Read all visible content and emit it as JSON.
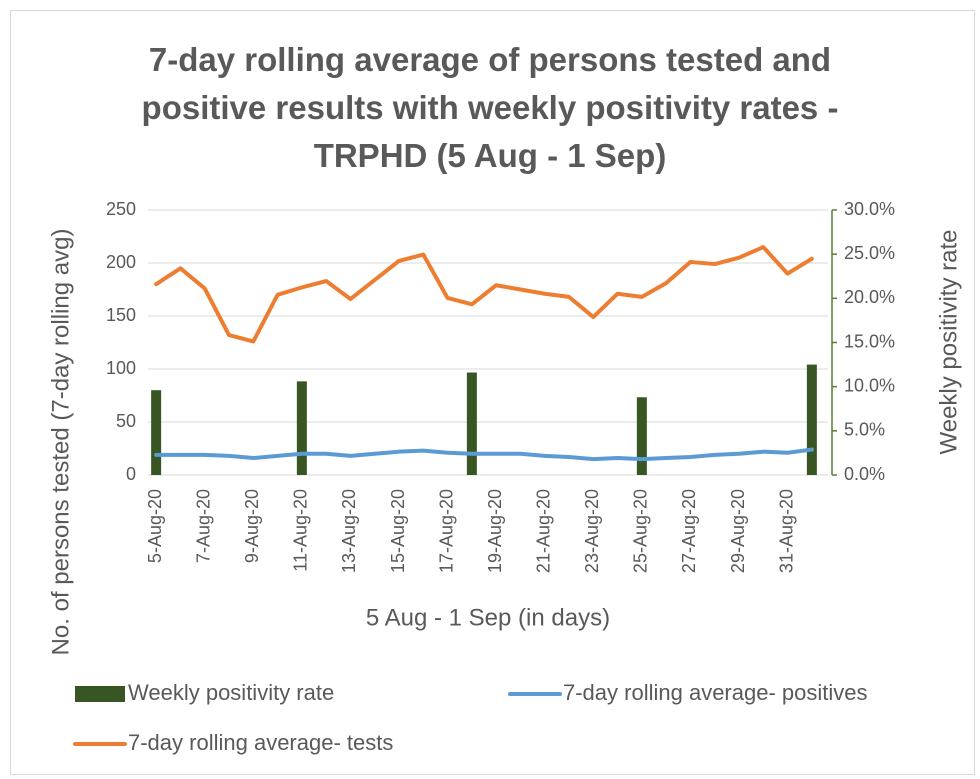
{
  "chart_data": {
    "type": "line",
    "title": "7-day rolling average of persons tested and positive results with weekly positivity rates - TRPHD (5 Aug - 1 Sep)",
    "x_label": "5 Aug -  1 Sep (in days)",
    "y_label": "No. of persons tested (7-day rolling avg)",
    "y2_label": "Weekly positivity rate",
    "categories": [
      "5-Aug-20",
      null,
      "7-Aug-20",
      null,
      "9-Aug-20",
      null,
      "11-Aug-20",
      null,
      "13-Aug-20",
      null,
      "15-Aug-20",
      null,
      "17-Aug-20",
      null,
      "19-Aug-20",
      null,
      "21-Aug-20",
      null,
      "23-Aug-20",
      null,
      "25-Aug-20",
      null,
      "27-Aug-20",
      null,
      "29-Aug-20",
      null,
      "31-Aug-20",
      null
    ],
    "ylim": [
      0,
      250
    ],
    "yticks": [
      0,
      50,
      100,
      150,
      200,
      250
    ],
    "y2lim": [
      0,
      30
    ],
    "y2ticks": [
      {
        "value": 0,
        "label": "0.0%"
      },
      {
        "value": 5,
        "label": "5.0%"
      },
      {
        "value": 10,
        "label": "10.0%"
      },
      {
        "value": 15,
        "label": "15.0%"
      },
      {
        "value": 20,
        "label": "20.0%"
      },
      {
        "value": 25,
        "label": "25.0%"
      },
      {
        "value": 30,
        "label": "30.0%"
      }
    ],
    "grid": true,
    "legend": "bottom",
    "series": [
      {
        "name": "Weekly positivity rate",
        "type": "bar",
        "axis": "y2",
        "color": "#375623",
        "values": [
          9.6,
          null,
          null,
          null,
          null,
          null,
          10.6,
          null,
          null,
          null,
          null,
          null,
          null,
          11.6,
          null,
          null,
          null,
          null,
          null,
          null,
          8.8,
          null,
          null,
          null,
          null,
          null,
          null,
          12.5
        ]
      },
      {
        "name": "7-day rolling average- positives",
        "type": "line",
        "color": "#5b9bd5",
        "values": [
          19,
          19,
          19,
          18,
          16,
          18,
          20,
          20,
          18,
          20,
          22,
          23,
          21,
          20,
          20,
          20,
          18,
          17,
          15,
          16,
          15,
          16,
          17,
          19,
          20,
          22,
          21,
          24
        ]
      },
      {
        "name": "7-day rolling average- tests",
        "type": "line",
        "color": "#ed7d31",
        "values": [
          180,
          195,
          176,
          132,
          126,
          170,
          177,
          183,
          166,
          184,
          202,
          208,
          167,
          161,
          179,
          175,
          171,
          168,
          149,
          171,
          168,
          181,
          201,
          199,
          205,
          215,
          190,
          204
        ]
      }
    ]
  }
}
